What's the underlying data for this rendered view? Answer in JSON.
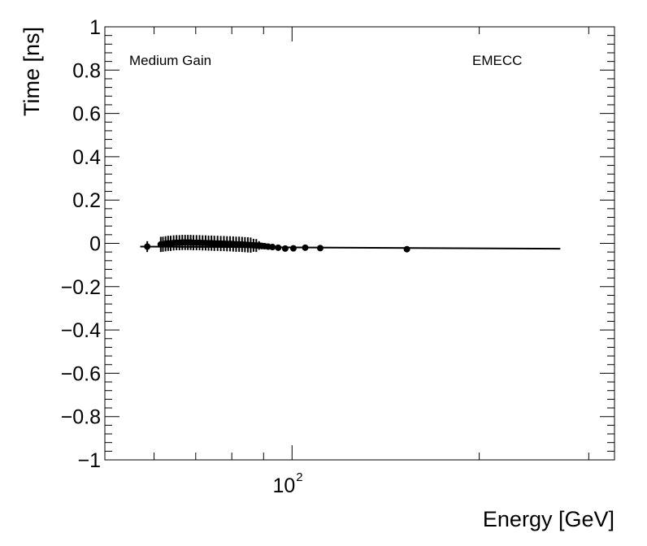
{
  "chart_data": {
    "type": "scatter",
    "xlabel": "Energy [GeV]",
    "ylabel": "Time [ns]",
    "xscale": "log",
    "xlim": [
      50,
      330
    ],
    "ylim": [
      -1,
      1
    ],
    "grid": false,
    "annotations": [
      "Medium Gain",
      "EMECC"
    ],
    "y_ticks": [
      {
        "value": 1,
        "label": "1"
      },
      {
        "value": 0.8,
        "label": "0.8"
      },
      {
        "value": 0.6,
        "label": "0.6"
      },
      {
        "value": 0.4,
        "label": "0.4"
      },
      {
        "value": 0.2,
        "label": "0.2"
      },
      {
        "value": 0,
        "label": "0"
      },
      {
        "value": -0.2,
        "label": "−0.2"
      },
      {
        "value": -0.4,
        "label": "−0.4"
      },
      {
        "value": -0.6,
        "label": "−0.6"
      },
      {
        "value": -0.8,
        "label": "−0.8"
      },
      {
        "value": -1,
        "label": "−1"
      }
    ],
    "x_ticks": [
      {
        "value": 100,
        "base": "10",
        "exponent": "2"
      }
    ],
    "fit_line": {
      "x": [
        57,
        270
      ],
      "y": [
        -0.015,
        -0.025
      ]
    },
    "points": [
      {
        "x": 58.5,
        "y": -0.015,
        "err": 0.025
      },
      {
        "x": 61.5,
        "y": -0.005,
        "err": 0.035
      },
      {
        "x": 62.0,
        "y": -0.004,
        "err": 0.035
      },
      {
        "x": 62.6,
        "y": -0.002,
        "err": 0.035
      },
      {
        "x": 63.2,
        "y": 0.0,
        "err": 0.035
      },
      {
        "x": 63.8,
        "y": 0.0,
        "err": 0.035
      },
      {
        "x": 64.5,
        "y": 0.002,
        "err": 0.035
      },
      {
        "x": 65.2,
        "y": 0.003,
        "err": 0.035
      },
      {
        "x": 65.9,
        "y": 0.003,
        "err": 0.035
      },
      {
        "x": 66.6,
        "y": 0.004,
        "err": 0.035
      },
      {
        "x": 67.3,
        "y": 0.004,
        "err": 0.035
      },
      {
        "x": 68.0,
        "y": 0.004,
        "err": 0.035
      },
      {
        "x": 68.7,
        "y": 0.004,
        "err": 0.035
      },
      {
        "x": 69.4,
        "y": 0.003,
        "err": 0.035
      },
      {
        "x": 70.2,
        "y": 0.003,
        "err": 0.035
      },
      {
        "x": 71.0,
        "y": 0.003,
        "err": 0.035
      },
      {
        "x": 71.8,
        "y": 0.002,
        "err": 0.035
      },
      {
        "x": 72.6,
        "y": 0.002,
        "err": 0.035
      },
      {
        "x": 73.4,
        "y": 0.001,
        "err": 0.035
      },
      {
        "x": 74.2,
        "y": 0.001,
        "err": 0.035
      },
      {
        "x": 75.0,
        "y": 0.0,
        "err": 0.035
      },
      {
        "x": 75.9,
        "y": 0.0,
        "err": 0.035
      },
      {
        "x": 76.8,
        "y": -0.001,
        "err": 0.035
      },
      {
        "x": 77.7,
        "y": -0.001,
        "err": 0.035
      },
      {
        "x": 78.6,
        "y": -0.002,
        "err": 0.035
      },
      {
        "x": 79.5,
        "y": -0.002,
        "err": 0.035
      },
      {
        "x": 80.4,
        "y": -0.003,
        "err": 0.035
      },
      {
        "x": 81.3,
        "y": -0.004,
        "err": 0.035
      },
      {
        "x": 82.2,
        "y": -0.004,
        "err": 0.035
      },
      {
        "x": 83.1,
        "y": -0.005,
        "err": 0.035
      },
      {
        "x": 84.0,
        "y": -0.006,
        "err": 0.035
      },
      {
        "x": 84.9,
        "y": -0.007,
        "err": 0.035
      },
      {
        "x": 85.8,
        "y": -0.008,
        "err": 0.035
      },
      {
        "x": 86.7,
        "y": -0.009,
        "err": 0.03
      },
      {
        "x": 87.6,
        "y": -0.01,
        "err": 0.03
      },
      {
        "x": 88.5,
        "y": -0.01,
        "err": 0.02
      },
      {
        "x": 89.4,
        "y": -0.012,
        "err": 0.015
      },
      {
        "x": 90.3,
        "y": -0.013,
        "err": 0.012
      },
      {
        "x": 91.5,
        "y": -0.015,
        "err": 0.01
      },
      {
        "x": 93.0,
        "y": -0.017,
        "err": 0.008
      },
      {
        "x": 95.0,
        "y": -0.02,
        "err": 0.007
      },
      {
        "x": 97.5,
        "y": -0.024,
        "err": 0.006
      },
      {
        "x": 100.5,
        "y": -0.023,
        "err": 0.005
      },
      {
        "x": 105.0,
        "y": -0.02,
        "err": 0.005
      },
      {
        "x": 111.0,
        "y": -0.022,
        "err": 0.005
      },
      {
        "x": 153.0,
        "y": -0.027,
        "err": 0.004
      }
    ]
  }
}
